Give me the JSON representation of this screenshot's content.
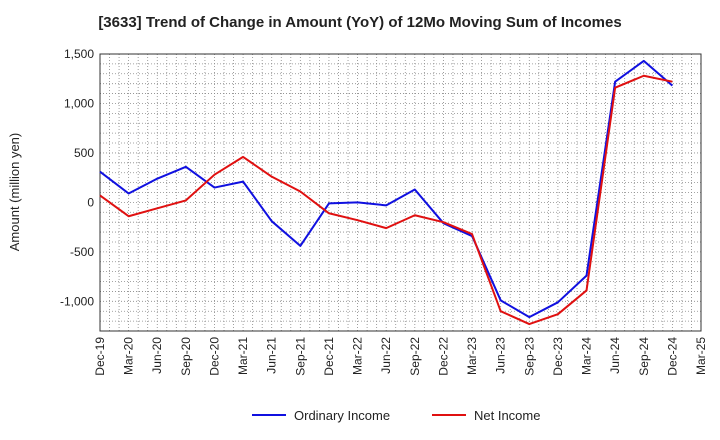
{
  "chart_data": {
    "type": "line",
    "title": "[3633]  Trend of Change in Amount (YoY) of 12Mo Moving Sum of Incomes",
    "ylabel": "Amount (million yen)",
    "xlabel": "",
    "ylim": [
      -1300,
      1500
    ],
    "yticks": [
      1500,
      1000,
      500,
      0,
      -500,
      -1000
    ],
    "ytick_labels": [
      "1,500",
      "1,000",
      "500",
      "0",
      "-500",
      "-1,000"
    ],
    "x": [
      "Dec-19",
      "Mar-20",
      "Jun-20",
      "Sep-20",
      "Dec-20",
      "Mar-21",
      "Jun-21",
      "Sep-21",
      "Dec-21",
      "Mar-22",
      "Jun-22",
      "Sep-22",
      "Dec-22",
      "Mar-23",
      "Jun-23",
      "Sep-23",
      "Dec-23",
      "Mar-24",
      "Jun-24",
      "Sep-24",
      "Dec-24",
      "Mar-25"
    ],
    "grid": true,
    "legend_position": "bottom",
    "series": [
      {
        "name": "Ordinary Income",
        "color": "#1010e0",
        "values": [
          310,
          90,
          240,
          360,
          150,
          210,
          -190,
          -440,
          -10,
          0,
          -30,
          130,
          -210,
          -340,
          -990,
          -1160,
          -1010,
          -740,
          1220,
          1430,
          1180,
          null
        ]
      },
      {
        "name": "Net Income",
        "color": "#e01010",
        "values": [
          70,
          -140,
          -60,
          20,
          280,
          460,
          260,
          110,
          -110,
          -180,
          -260,
          -130,
          -200,
          -320,
          -1100,
          -1230,
          -1130,
          -890,
          1160,
          1280,
          1220,
          null
        ]
      }
    ]
  }
}
